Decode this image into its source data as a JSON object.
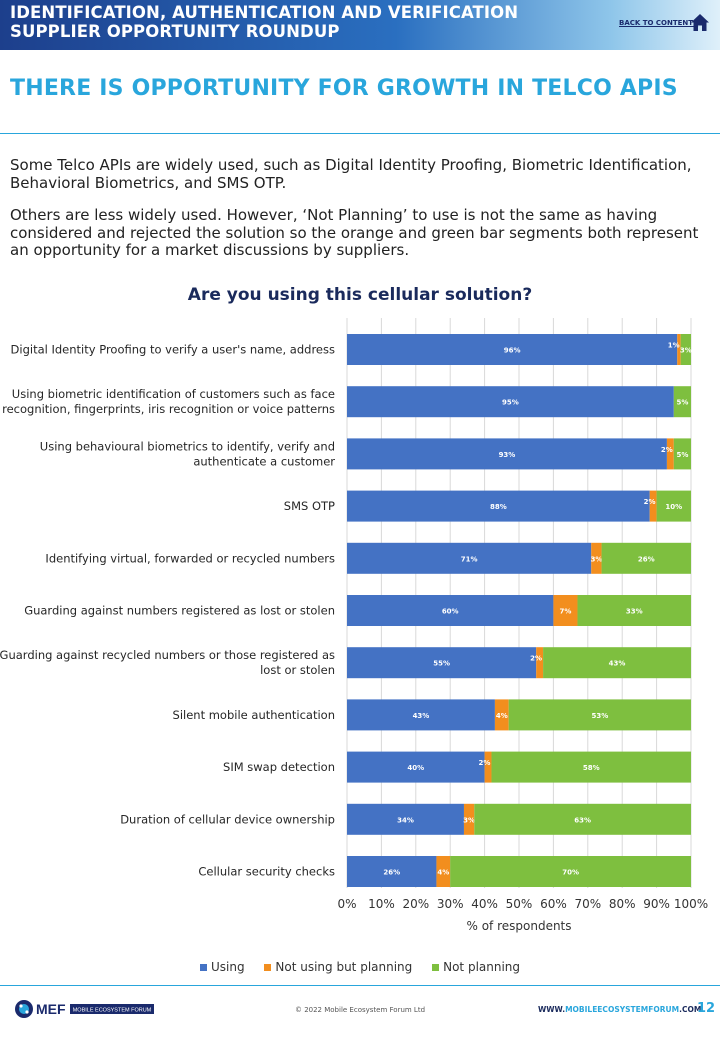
{
  "header": {
    "line1": "IDENTIFICATION, AUTHENTICATION AND VERIFICATION",
    "line2": "SUPPLIER OPPORTUNITY ROUNDUP",
    "back_link": "BACK TO CONTENTS",
    "home_icon": "home-icon"
  },
  "page_title": "THERE IS OPPORTUNITY FOR GROWTH IN TELCO APIS",
  "intro": {
    "p1": "Some Telco APIs are widely used, such as Digital Identity Proofing, Biometric Identification, Behavioral Biometrics, and SMS OTP.",
    "p2": "Others are less widely used. However, ‘Not Planning’ to use is not the same as having considered and rejected the solution so the orange and green bar segments both represent an opportunity for a market discussions by suppliers."
  },
  "chart_data": {
    "type": "bar",
    "orientation": "horizontal",
    "stacked": true,
    "title": "Are you using this cellular solution?",
    "xlabel": "% of respondents",
    "xlim": [
      0,
      100
    ],
    "xticks": [
      "0%",
      "10%",
      "20%",
      "30%",
      "40%",
      "50%",
      "60%",
      "70%",
      "80%",
      "90%",
      "100%"
    ],
    "legend_position": "bottom",
    "categories": [
      [
        "Digital Identity Proofing to verify a user's name, address"
      ],
      [
        "Using biometric identification of customers such as face",
        "recognition, fingerprints, iris recognition or voice patterns"
      ],
      [
        "Using behavioural biometrics to identify, verify and",
        "authenticate a customer"
      ],
      [
        "SMS OTP"
      ],
      [
        "Identifying virtual, forwarded or recycled numbers"
      ],
      [
        "Guarding against numbers registered as lost or stolen"
      ],
      [
        "Guarding against recycled numbers or those registered as",
        "lost or stolen"
      ],
      [
        "Silent mobile authentication"
      ],
      [
        "SIM swap detection"
      ],
      [
        "Duration of cellular device ownership"
      ],
      [
        "Cellular security checks"
      ]
    ],
    "series": [
      {
        "name": "Using",
        "color": "#4472c4",
        "values": [
          96,
          95,
          93,
          88,
          71,
          60,
          55,
          43,
          40,
          34,
          26
        ]
      },
      {
        "name": "Not using but planning",
        "color": "#f28e1e",
        "values": [
          1,
          0,
          2,
          2,
          3,
          7,
          2,
          4,
          2,
          3,
          4
        ]
      },
      {
        "name": "Not planning",
        "color": "#7ebf3f",
        "values": [
          3,
          5,
          5,
          10,
          26,
          33,
          43,
          53,
          58,
          63,
          70
        ]
      }
    ],
    "data_labels": [
      [
        "96%",
        "1%",
        "3%"
      ],
      [
        "95%",
        "",
        "5%"
      ],
      [
        "93%",
        "2%",
        "5%"
      ],
      [
        "88%",
        "2%",
        "10%"
      ],
      [
        "71%",
        "3%",
        "26%"
      ],
      [
        "60%",
        "7%",
        "33%"
      ],
      [
        "55%",
        "2%",
        "43%"
      ],
      [
        "43%",
        "4%",
        "53%"
      ],
      [
        "40%",
        "2%",
        "58%"
      ],
      [
        "34%",
        "3%",
        "63%"
      ],
      [
        "26%",
        "4%",
        "70%"
      ]
    ]
  },
  "footer": {
    "logo_text": "MEF",
    "logo_sub": "MOBILE ECOSYSTEM FORUM",
    "copyright": "© 2022 Mobile Ecosystem Forum Ltd",
    "site_prefix": "WWW.",
    "site_main": "MOBILEECOSYSTEMFORUM",
    "site_suffix": ".COM",
    "page_number": "12"
  }
}
